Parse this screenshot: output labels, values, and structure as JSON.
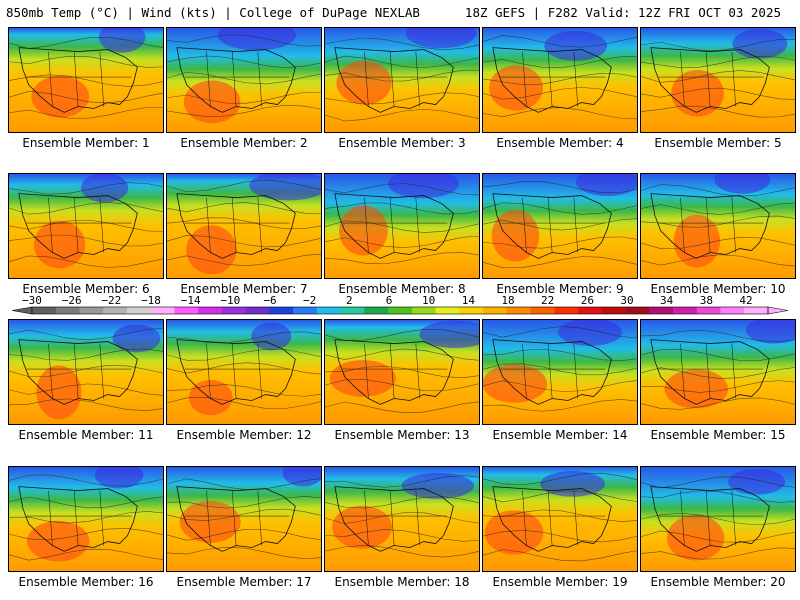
{
  "header": {
    "left": "850mb Temp (°C) | Wind (kts) | College of DuPage NEXLAB",
    "right": "18Z GEFS | F282 Valid: 12Z FRI OCT 03 2025"
  },
  "member_label_prefix": "Ensemble Member: ",
  "members": [
    1,
    2,
    3,
    4,
    5,
    6,
    7,
    8,
    9,
    10,
    11,
    12,
    13,
    14,
    15,
    16,
    17,
    18,
    19,
    20
  ],
  "colorbar": {
    "ticks": [
      "−30",
      "−26",
      "−22",
      "−18",
      "−14",
      "−10",
      "−6",
      "−2",
      "2",
      "6",
      "10",
      "14",
      "18",
      "22",
      "26",
      "30",
      "34",
      "38",
      "42"
    ],
    "colors": [
      "#606060",
      "#7c7c7c",
      "#989898",
      "#b4b4b4",
      "#d2d2d2",
      "#ffb3ff",
      "#ff5cff",
      "#d033e6",
      "#9a32dc",
      "#7030c8",
      "#2040e0",
      "#2a7cf0",
      "#22bce8",
      "#28c8a0",
      "#20a848",
      "#50c020",
      "#98d818",
      "#e6ec20",
      "#ffd000",
      "#ffb000",
      "#ff8c00",
      "#ff6000",
      "#ff3000",
      "#e41010",
      "#c00c0c",
      "#a00c20",
      "#b01078",
      "#d020a8",
      "#ee48d8",
      "#ff80ff",
      "#ffb0ff"
    ]
  }
}
